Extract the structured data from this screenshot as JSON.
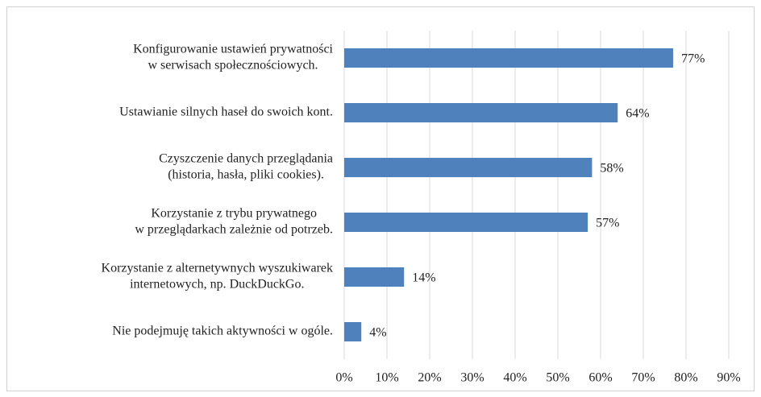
{
  "chart_data": {
    "type": "bar",
    "orientation": "horizontal",
    "categories": [
      [
        "Konfigurowanie ustawień prywatności",
        "w serwisach społecznościowych."
      ],
      [
        "Ustawianie silnych haseł do swoich kont."
      ],
      [
        "Czyszczenie danych przeglądania",
        "(historia, hasła, pliki cookies)."
      ],
      [
        "Korzystanie z trybu prywatnego",
        "w przeglądarkach zależnie od potrzeb."
      ],
      [
        "Korzystanie z alternetywnych wyszukiwarek",
        "internetowych, np. DuckDuckGo."
      ],
      [
        "Nie podejmuję takich aktywności w ogóle."
      ]
    ],
    "values": [
      77,
      64,
      58,
      57,
      14,
      4
    ],
    "value_labels": [
      "77%",
      "64%",
      "58%",
      "57%",
      "14%",
      "4%"
    ],
    "color": "#4f81bd",
    "xlim": [
      0,
      90
    ],
    "xticks": [
      {
        "value": 0,
        "label": "0%"
      },
      {
        "value": 10,
        "label": "10%"
      },
      {
        "value": 20,
        "label": "20%"
      },
      {
        "value": 30,
        "label": "30%"
      },
      {
        "value": 40,
        "label": "40%"
      },
      {
        "value": 50,
        "label": "50%"
      },
      {
        "value": 60,
        "label": "60%"
      },
      {
        "value": 70,
        "label": "70%"
      },
      {
        "value": 80,
        "label": "80%"
      },
      {
        "value": 90,
        "label": "90%"
      }
    ],
    "grid": true
  }
}
